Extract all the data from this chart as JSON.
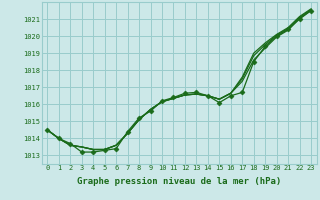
{
  "hours": [
    0,
    1,
    2,
    3,
    4,
    5,
    6,
    7,
    8,
    9,
    10,
    11,
    12,
    13,
    14,
    15,
    16,
    17,
    18,
    19,
    20,
    21,
    22,
    23
  ],
  "line_main": [
    1014.5,
    1014.0,
    1013.7,
    1013.2,
    1013.2,
    1013.3,
    1013.4,
    1014.4,
    1015.2,
    1015.6,
    1016.2,
    1016.4,
    1016.65,
    1016.7,
    1016.5,
    1016.1,
    1016.5,
    1016.7,
    1018.5,
    1019.4,
    1020.0,
    1020.4,
    1021.0,
    1021.5
  ],
  "line_smooth1": [
    1014.5,
    1014.0,
    1013.6,
    1013.5,
    1013.35,
    1013.35,
    1013.6,
    1014.3,
    1015.1,
    1015.7,
    1016.15,
    1016.35,
    1016.55,
    1016.6,
    1016.5,
    1016.3,
    1016.65,
    1017.35,
    1018.6,
    1019.3,
    1019.95,
    1020.35,
    1021.05,
    1021.5
  ],
  "line_smooth2": [
    1014.5,
    1014.0,
    1013.6,
    1013.5,
    1013.35,
    1013.35,
    1013.6,
    1014.3,
    1015.1,
    1015.7,
    1016.15,
    1016.35,
    1016.55,
    1016.6,
    1016.5,
    1016.3,
    1016.65,
    1017.5,
    1018.85,
    1019.5,
    1020.05,
    1020.45,
    1021.1,
    1021.55
  ],
  "line_smooth3": [
    1014.5,
    1014.0,
    1013.6,
    1013.5,
    1013.35,
    1013.35,
    1013.6,
    1014.3,
    1015.1,
    1015.7,
    1016.15,
    1016.35,
    1016.55,
    1016.6,
    1016.5,
    1016.3,
    1016.65,
    1017.6,
    1019.0,
    1019.6,
    1020.1,
    1020.5,
    1021.15,
    1021.6
  ],
  "line_color": "#1a6b1a",
  "bg_color": "#cce8e8",
  "grid_color": "#99cccc",
  "axis_label_color": "#1a6b1a",
  "xlabel": "Graphe pression niveau de la mer (hPa)",
  "ylim": [
    1012.5,
    1022.0
  ],
  "xlim": [
    -0.5,
    23.5
  ],
  "yticks": [
    1013,
    1014,
    1015,
    1016,
    1017,
    1018,
    1019,
    1020,
    1021
  ],
  "xticks": [
    0,
    1,
    2,
    3,
    4,
    5,
    6,
    7,
    8,
    9,
    10,
    11,
    12,
    13,
    14,
    15,
    16,
    17,
    18,
    19,
    20,
    21,
    22,
    23
  ]
}
